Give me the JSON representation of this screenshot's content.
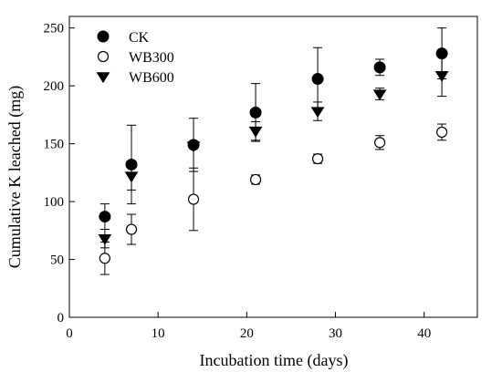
{
  "chart_data": {
    "type": "scatter",
    "xlabel": "Incubation time (days)",
    "ylabel": "Cumulative K leached (mg)",
    "xlim": [
      0,
      46
    ],
    "ylim": [
      0,
      260
    ],
    "xticks": [
      0,
      10,
      20,
      30,
      40
    ],
    "yticks": [
      0,
      50,
      100,
      150,
      200,
      250
    ],
    "grid": false,
    "legend_position": "top-left",
    "series": [
      {
        "name": "CK",
        "marker": "filled-circle",
        "color": "#000000",
        "points": [
          {
            "x": 4,
            "y": 87,
            "err": 11
          },
          {
            "x": 7,
            "y": 132,
            "err": 34
          },
          {
            "x": 14,
            "y": 149,
            "err": 23
          },
          {
            "x": 21,
            "y": 177,
            "err": 25
          },
          {
            "x": 28,
            "y": 206,
            "err": 27
          },
          {
            "x": 35,
            "y": 216,
            "err": 7
          },
          {
            "x": 42,
            "y": 228,
            "err": 22
          }
        ]
      },
      {
        "name": "WB300",
        "marker": "open-circle",
        "color": "#000000",
        "points": [
          {
            "x": 4,
            "y": 51,
            "err": 14
          },
          {
            "x": 7,
            "y": 76,
            "err": 13
          },
          {
            "x": 14,
            "y": 102,
            "err": 27
          },
          {
            "x": 21,
            "y": 119,
            "err": 4
          },
          {
            "x": 28,
            "y": 137,
            "err": 4
          },
          {
            "x": 35,
            "y": 151,
            "err": 6
          },
          {
            "x": 42,
            "y": 160,
            "err": 7
          }
        ]
      },
      {
        "name": "WB600",
        "marker": "filled-triangle-down",
        "color": "#000000",
        "points": [
          {
            "x": 4,
            "y": 68,
            "err": 8
          },
          {
            "x": 7,
            "y": 122,
            "err": 12
          },
          {
            "x": 14,
            "y": 148,
            "err": 2
          },
          {
            "x": 21,
            "y": 161,
            "err": 8
          },
          {
            "x": 28,
            "y": 178,
            "err": 8
          },
          {
            "x": 35,
            "y": 193,
            "err": 5
          },
          {
            "x": 42,
            "y": 209,
            "err": 18
          }
        ]
      }
    ]
  }
}
